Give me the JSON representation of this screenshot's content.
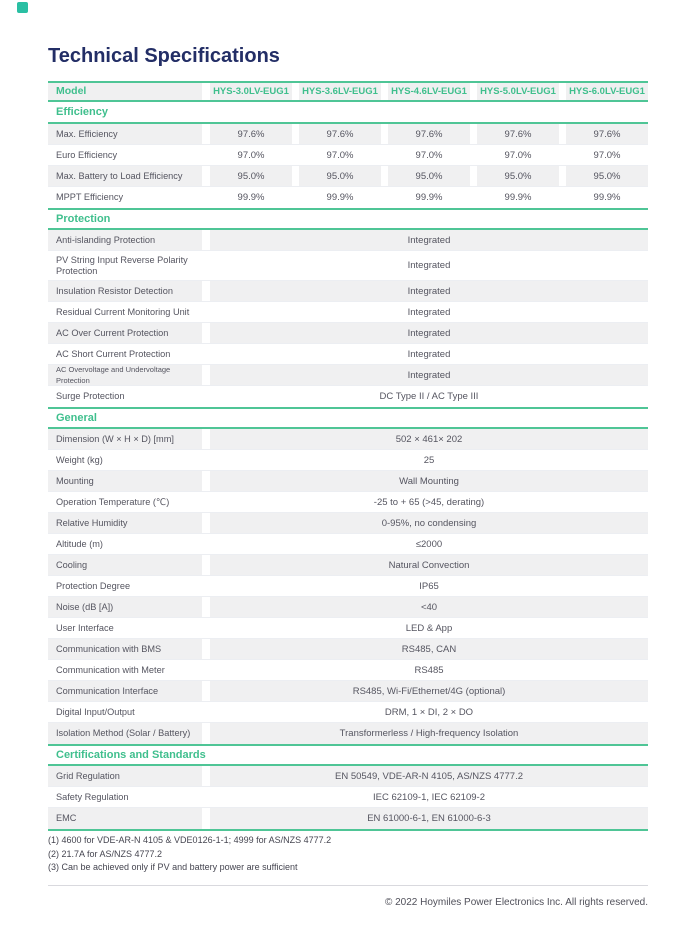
{
  "page": {
    "title": "Technical Specifications",
    "copyright": "© 2022 Hoymiles Power Electronics Inc. All rights reserved.",
    "footnotes": [
      "(1) 4600 for VDE-AR-N 4105 & VDE0126-1-1; 4999 for AS/NZS 4777.2",
      "(2) 21.7A for AS/NZS 4777.2",
      "(3) Can be achieved only if PV and battery power are sufficient"
    ]
  },
  "colors": {
    "accent_green": "#4fc596",
    "title_navy": "#232e66",
    "row_gray": "#f0f0f1",
    "body_text": "#555560",
    "brand_teal": "#2abfa3"
  },
  "table": {
    "header": {
      "label": "Model",
      "models": [
        "HYS-3.0LV-EUG1",
        "HYS-3.6LV-EUG1",
        "HYS-4.6LV-EUG1",
        "HYS-5.0LV-EUG1",
        "HYS-6.0LV-EUG1"
      ]
    },
    "sections": [
      {
        "title": "Efficiency",
        "rows": [
          {
            "label": "Max. Efficiency",
            "values": [
              "97.6%",
              "97.6%",
              "97.6%",
              "97.6%",
              "97.6%"
            ]
          },
          {
            "label": "Euro Efficiency",
            "values": [
              "97.0%",
              "97.0%",
              "97.0%",
              "97.0%",
              "97.0%"
            ]
          },
          {
            "label": "Max. Battery to Load Efficiency",
            "values": [
              "95.0%",
              "95.0%",
              "95.0%",
              "95.0%",
              "95.0%"
            ]
          },
          {
            "label": "MPPT Efficiency",
            "values": [
              "99.9%",
              "99.9%",
              "99.9%",
              "99.9%",
              "99.9%"
            ]
          }
        ]
      },
      {
        "title": "Protection",
        "rows": [
          {
            "label": "Anti-islanding Protection",
            "value": "Integrated"
          },
          {
            "label": "PV String Input Reverse Polarity Protection",
            "value": "Integrated",
            "tall": true
          },
          {
            "label": "Insulation Resistor Detection",
            "value": "Integrated"
          },
          {
            "label": "Residual Current Monitoring Unit",
            "value": "Integrated"
          },
          {
            "label": "AC Over Current Protection",
            "value": "Integrated"
          },
          {
            "label": "AC Short Current Protection",
            "value": "Integrated"
          },
          {
            "label": "AC Overvoltage and Undervoltage Protection",
            "value": "Integrated",
            "small": true
          },
          {
            "label": "Surge Protection",
            "value": "DC Type II / AC Type III"
          }
        ]
      },
      {
        "title": "General",
        "rows": [
          {
            "label": "Dimension (W × H × D) [mm]",
            "value": "502 × 461× 202"
          },
          {
            "label": "Weight (kg)",
            "value": "25"
          },
          {
            "label": "Mounting",
            "value": "Wall Mounting"
          },
          {
            "label": "Operation Temperature (℃)",
            "value": "-25 to + 65 (>45, derating)"
          },
          {
            "label": "Relative Humidity",
            "value": "0-95%, no condensing"
          },
          {
            "label": "Altitude (m)",
            "value": "≤2000"
          },
          {
            "label": "Cooling",
            "value": "Natural Convection"
          },
          {
            "label": "Protection Degree",
            "value": "IP65"
          },
          {
            "label": "Noise (dB [A])",
            "value": "<40"
          },
          {
            "label": "User Interface",
            "value": "LED & App"
          },
          {
            "label": "Communication with BMS",
            "value": "RS485, CAN"
          },
          {
            "label": "Communication with Meter",
            "value": "RS485"
          },
          {
            "label": "Communication Interface",
            "value": "RS485, Wi-Fi/Ethernet/4G (optional)"
          },
          {
            "label": "Digital Input/Output",
            "value": "DRM, 1 × DI, 2 × DO"
          },
          {
            "label": "Isolation Method (Solar / Battery)",
            "value": "Transformerless / High-frequency Isolation"
          }
        ]
      },
      {
        "title": "Certifications and Standards",
        "rows": [
          {
            "label": "Grid Regulation",
            "value": "EN 50549, VDE-AR-N 4105, AS/NZS 4777.2"
          },
          {
            "label": "Safety Regulation",
            "value": "IEC 62109-1, IEC 62109-2"
          },
          {
            "label": "EMC",
            "value": "EN 61000-6-1, EN 61000-6-3"
          }
        ]
      }
    ]
  }
}
